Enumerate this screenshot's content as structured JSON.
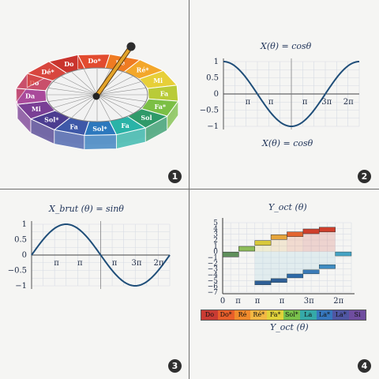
{
  "panel_numbers": [
    "1",
    "2",
    "3",
    "4"
  ],
  "wheel": {
    "segments": [
      {
        "label": "Do",
        "color": "#c9342d"
      },
      {
        "label": "Do*",
        "color": "#e24b2f"
      },
      {
        "label": "Ré",
        "color": "#ef7b22"
      },
      {
        "label": "Ré*",
        "color": "#f3a72a"
      },
      {
        "label": "Mi",
        "color": "#e7cf38"
      },
      {
        "label": "Fa",
        "color": "#b9cb38"
      },
      {
        "label": "Fa*",
        "color": "#7bbf45"
      },
      {
        "label": "Sol",
        "color": "#2f9a69"
      },
      {
        "label": "Fa",
        "color": "#2ab3a7"
      },
      {
        "label": "Sol*",
        "color": "#2c78bd"
      },
      {
        "label": "Fa",
        "color": "#3e58a8"
      },
      {
        "label": "Sol*",
        "color": "#4c3d90"
      },
      {
        "label": "Mi",
        "color": "#7a3f95"
      },
      {
        "label": "Da",
        "color": "#a94a9b"
      },
      {
        "label": "Do",
        "color": "#c94f6b"
      },
      {
        "label": "Dé*",
        "color": "#d8463e"
      }
    ]
  },
  "chart_data": [
    {
      "type": "line",
      "title": "X(θ) = cosθ",
      "caption": "X(θ) = cosθ",
      "xlabel": "",
      "ylabel": "",
      "x_tick_labels": [
        "π",
        "π",
        "π",
        "3π",
        "2π"
      ],
      "y_tick_labels": [
        "1",
        "0.5",
        "0",
        "−0.5",
        "−1"
      ],
      "ylim": [
        -1,
        1
      ],
      "xlim": [
        0,
        6.2832
      ],
      "grid": true,
      "series": [
        {
          "function": "cos",
          "x_range": [
            0,
            6.2832
          ]
        }
      ],
      "line_color": "#1f4e79"
    },
    {
      "type": "line",
      "title": "X_brut (θ) = sinθ",
      "xlabel": "",
      "ylabel": "",
      "x_tick_labels": [
        "π",
        "π",
        "π",
        "3π",
        "2π"
      ],
      "y_tick_labels": [
        "1",
        "0.5",
        "0",
        "−0.5",
        "−1"
      ],
      "ylim": [
        -1,
        1
      ],
      "xlim": [
        0,
        6.2832
      ],
      "grid": true,
      "series": [
        {
          "function": "sin",
          "x_range": [
            0,
            6.2832
          ]
        }
      ],
      "line_color": "#1f4e79"
    },
    {
      "type": "bar",
      "title": "Y_oct (θ)",
      "caption": "Y_oct (θ)",
      "x_tick_labels": [
        "0",
        "π",
        "π",
        "π",
        "3π",
        "2π"
      ],
      "y_tick_labels": [
        "5",
        "4",
        "3",
        "2",
        "1",
        "0",
        "−1",
        "−2",
        "−3",
        "−4",
        "−5",
        "−6",
        "−7"
      ],
      "ylim": [
        -7,
        5
      ],
      "grid": true,
      "upper_steps": [
        {
          "x": [
            0,
            0.785
          ],
          "y": -0.5
        },
        {
          "x": [
            0.785,
            1.571
          ],
          "y": 0.5
        },
        {
          "x": [
            1.571,
            2.356
          ],
          "y": 1.5
        },
        {
          "x": [
            2.356,
            3.141
          ],
          "y": 2.5
        },
        {
          "x": [
            3.141,
            3.927
          ],
          "y": 3.0
        },
        {
          "x": [
            3.927,
            4.712
          ],
          "y": 3.5
        },
        {
          "x": [
            4.712,
            5.498
          ],
          "y": 3.8
        }
      ],
      "lower_steps": [
        {
          "x": [
            1.571,
            2.356
          ],
          "y": -5.4
        },
        {
          "x": [
            2.356,
            3.141
          ],
          "y": -5.0
        },
        {
          "x": [
            3.141,
            3.927
          ],
          "y": -4.2
        },
        {
          "x": [
            3.927,
            4.712
          ],
          "y": -3.5
        },
        {
          "x": [
            4.712,
            5.498
          ],
          "y": -2.6
        },
        {
          "x": [
            5.498,
            6.283
          ],
          "y": -0.4
        }
      ],
      "legend": [
        {
          "label": "Do",
          "color": "#c93b33"
        },
        {
          "label": "Do*",
          "color": "#e85e2a"
        },
        {
          "label": "Ré",
          "color": "#f08a2b"
        },
        {
          "label": "Ré*",
          "color": "#f3b843"
        },
        {
          "label": "Fa*",
          "color": "#e0d23a"
        },
        {
          "label": "Sol*",
          "color": "#79c24b"
        },
        {
          "label": "La",
          "color": "#35a9a8"
        },
        {
          "label": "La*",
          "color": "#3677bd"
        },
        {
          "label": "La*",
          "color": "#4f56a3"
        },
        {
          "label": "Si",
          "color": "#6f4d9f"
        }
      ]
    }
  ]
}
